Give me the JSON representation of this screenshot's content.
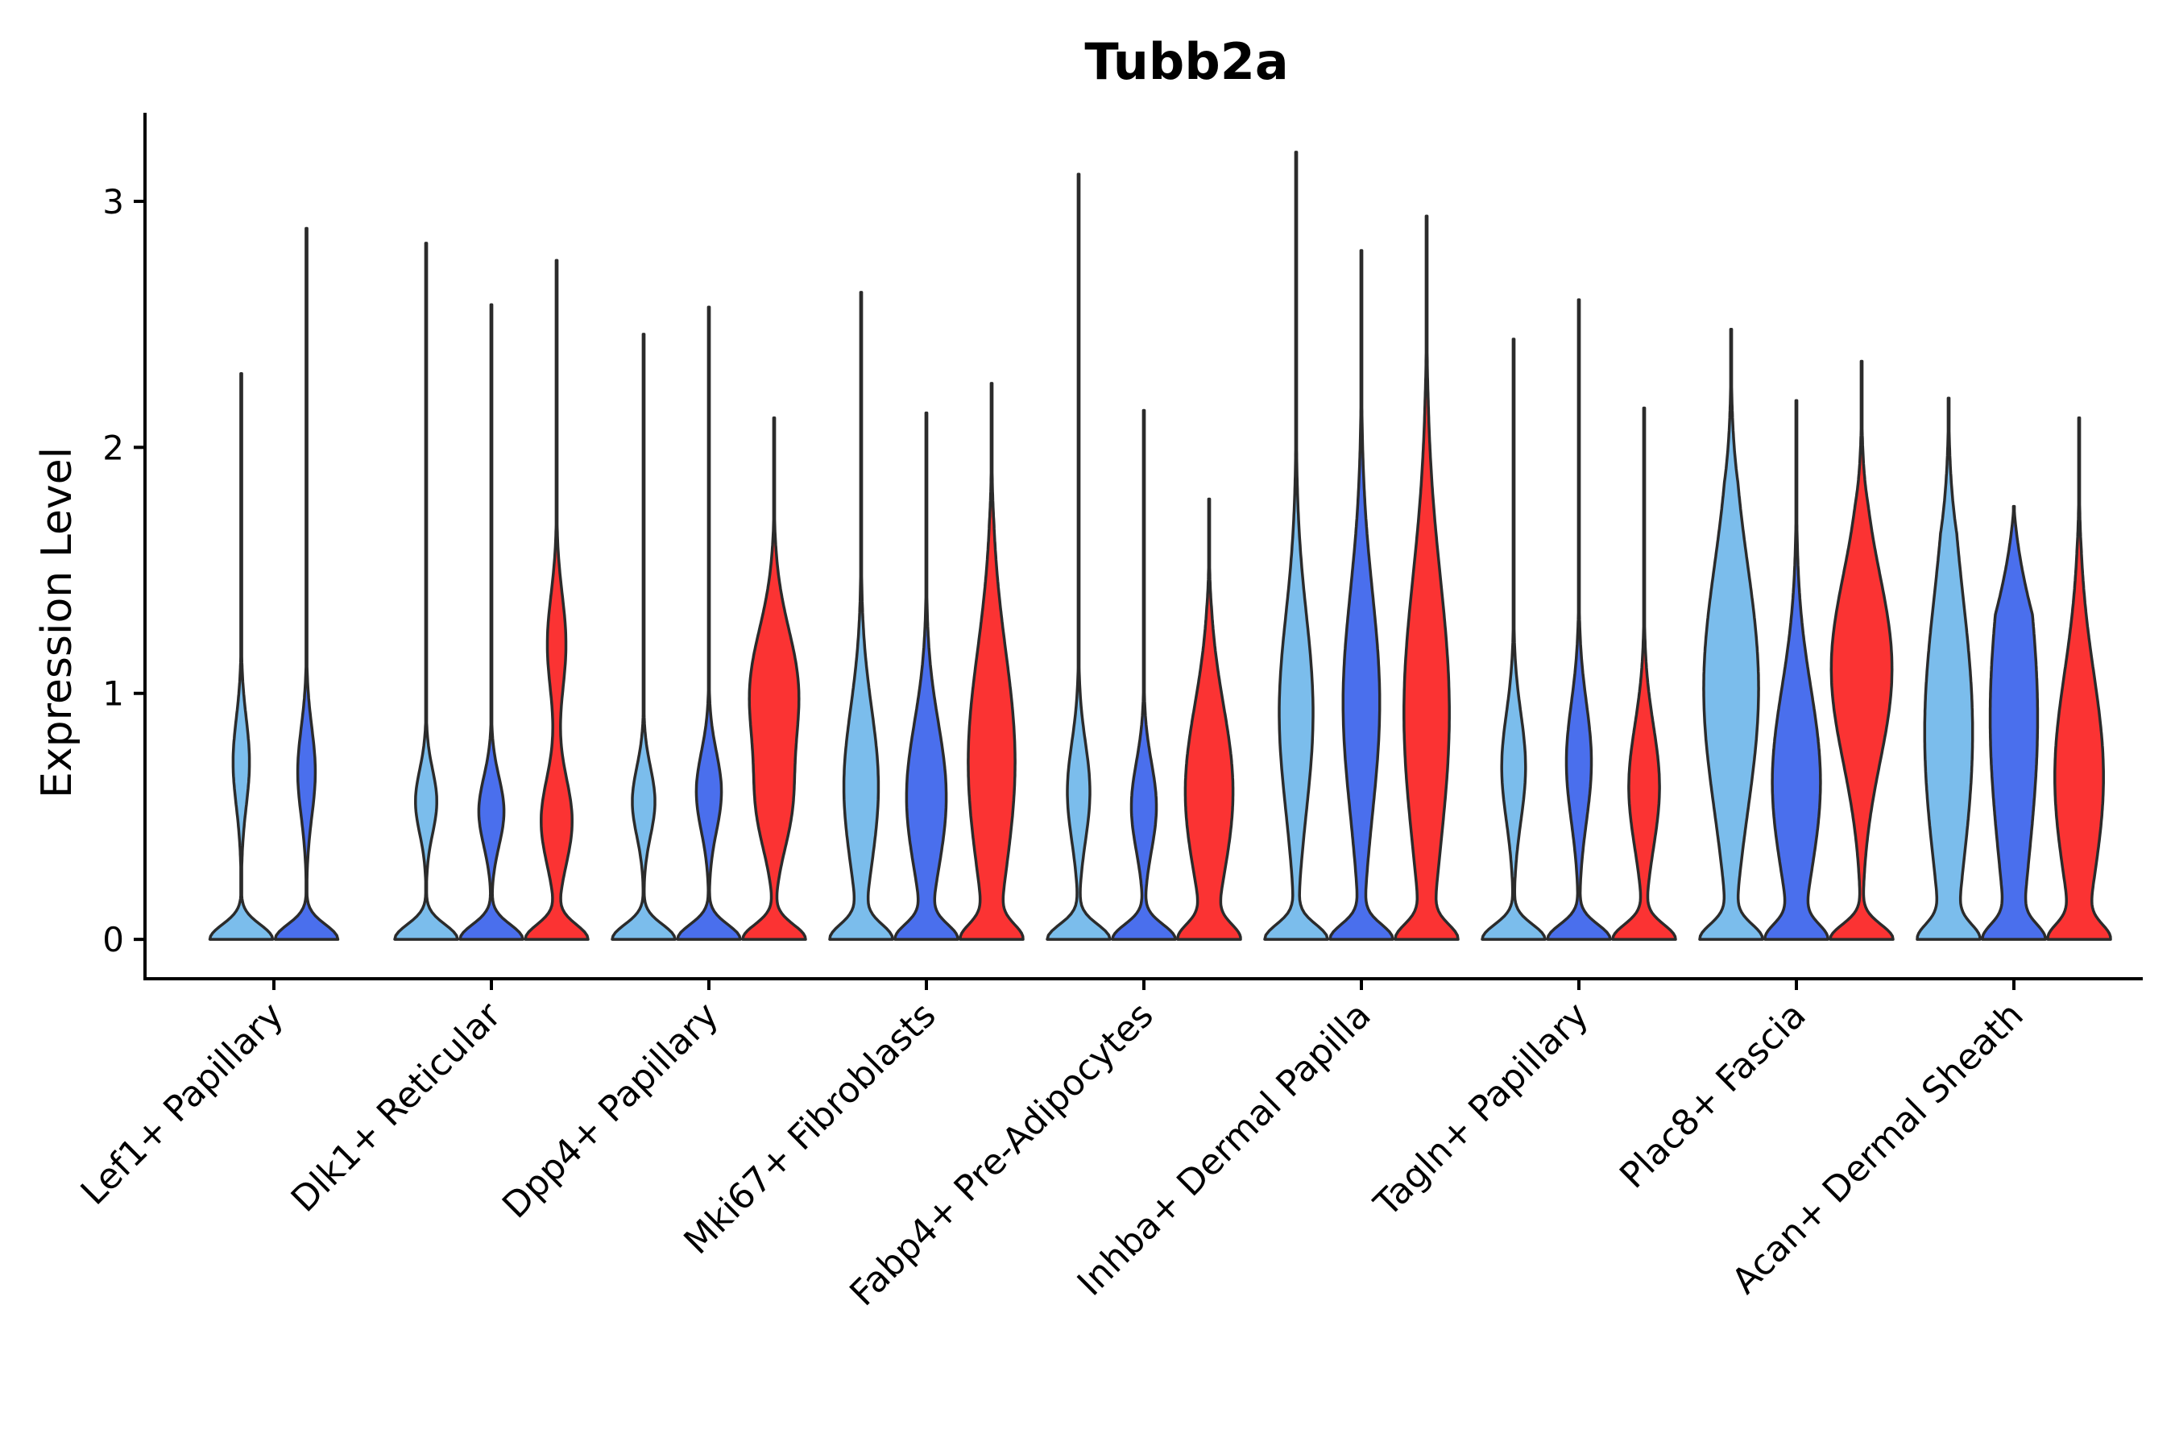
{
  "chart_data": {
    "type": "violin",
    "title": "Tubb2a",
    "xlabel": "",
    "ylabel": "Expression Level",
    "ylim": [
      -0.16,
      3.36
    ],
    "yticks": [
      0,
      1,
      2,
      3
    ],
    "legend": "none",
    "grid": false,
    "colors": {
      "light_blue": "#7bbdec",
      "blue": "#4a6fed",
      "red": "#fb3333"
    },
    "categories": [
      "Lef1+ Papillary",
      "Dlk1+ Reticular",
      "Dpp4+ Papillary",
      "Mki67+ Fibroblasts",
      "Fabp4+ Pre-Adipocytes",
      "Inhba+ Dermal Papilla",
      "Tagln+ Papillary",
      "Plac8+ Fascia",
      "Acan+ Dermal Sheath"
    ],
    "violins": [
      {
        "category": 0,
        "color": "light_blue",
        "max": 2.3,
        "modes": [
          [
            0.72,
            0.26,
            0.18
          ]
        ]
      },
      {
        "category": 0,
        "color": "blue",
        "max": 2.89,
        "modes": [
          [
            0.68,
            0.28,
            0.18
          ]
        ]
      },
      {
        "category": 1,
        "color": "light_blue",
        "max": 2.83,
        "modes": [
          [
            0.56,
            0.34,
            0.13
          ]
        ]
      },
      {
        "category": 1,
        "color": "blue",
        "max": 2.58,
        "modes": [
          [
            0.52,
            0.4,
            0.14
          ]
        ]
      },
      {
        "category": 1,
        "color": "red",
        "max": 2.76,
        "modes": [
          [
            0.48,
            0.5,
            0.18
          ],
          [
            1.2,
            0.3,
            0.2
          ]
        ]
      },
      {
        "category": 2,
        "color": "light_blue",
        "max": 2.46,
        "modes": [
          [
            0.56,
            0.36,
            0.14
          ]
        ]
      },
      {
        "category": 2,
        "color": "blue",
        "max": 2.57,
        "modes": [
          [
            0.6,
            0.4,
            0.16
          ]
        ]
      },
      {
        "category": 2,
        "color": "red",
        "max": 2.12,
        "modes": [
          [
            0.52,
            0.44,
            0.18
          ],
          [
            1.0,
            0.78,
            0.26
          ]
        ]
      },
      {
        "category": 3,
        "color": "light_blue",
        "max": 2.63,
        "modes": [
          [
            0.62,
            0.6,
            0.32
          ]
        ]
      },
      {
        "category": 3,
        "color": "blue",
        "max": 2.14,
        "modes": [
          [
            0.58,
            0.7,
            0.3
          ]
        ]
      },
      {
        "category": 3,
        "color": "red",
        "max": 2.26,
        "modes": [
          [
            0.72,
            0.94,
            0.45
          ]
        ]
      },
      {
        "category": 4,
        "color": "light_blue",
        "max": 3.11,
        "modes": [
          [
            0.6,
            0.36,
            0.2
          ]
        ]
      },
      {
        "category": 4,
        "color": "blue",
        "max": 2.15,
        "modes": [
          [
            0.54,
            0.4,
            0.18
          ]
        ]
      },
      {
        "category": 4,
        "color": "red",
        "max": 1.79,
        "modes": [
          [
            0.6,
            0.92,
            0.35
          ]
        ]
      },
      {
        "category": 5,
        "color": "light_blue",
        "max": 3.2,
        "modes": [
          [
            0.92,
            0.56,
            0.4
          ]
        ]
      },
      {
        "category": 5,
        "color": "blue",
        "max": 2.8,
        "modes": [
          [
            0.96,
            0.62,
            0.45
          ]
        ]
      },
      {
        "category": 5,
        "color": "red",
        "max": 2.94,
        "modes": [
          [
            0.92,
            0.88,
            0.55
          ]
        ]
      },
      {
        "category": 6,
        "color": "light_blue",
        "max": 2.44,
        "modes": [
          [
            0.7,
            0.38,
            0.22
          ]
        ]
      },
      {
        "category": 6,
        "color": "blue",
        "max": 2.6,
        "modes": [
          [
            0.72,
            0.4,
            0.24
          ]
        ]
      },
      {
        "category": 6,
        "color": "red",
        "max": 2.16,
        "modes": [
          [
            0.62,
            0.5,
            0.25
          ]
        ]
      },
      {
        "category": 7,
        "color": "light_blue",
        "max": 2.48,
        "modes": [
          [
            1.02,
            0.98,
            0.5
          ]
        ]
      },
      {
        "category": 7,
        "color": "blue",
        "max": 2.19,
        "modes": [
          [
            0.64,
            0.94,
            0.38
          ]
        ]
      },
      {
        "category": 7,
        "color": "red",
        "max": 2.35,
        "modes": [
          [
            1.1,
            0.98,
            0.38
          ]
        ]
      },
      {
        "category": 8,
        "color": "light_blue",
        "max": 2.2,
        "modes": [
          [
            0.84,
            1.0,
            0.55
          ]
        ]
      },
      {
        "category": 8,
        "color": "blue",
        "max": 1.76,
        "modes": [
          [
            0.9,
            1.0,
            0.6
          ]
        ]
      },
      {
        "category": 8,
        "color": "red",
        "max": 2.12,
        "modes": [
          [
            0.66,
            1.0,
            0.42
          ]
        ]
      }
    ]
  }
}
